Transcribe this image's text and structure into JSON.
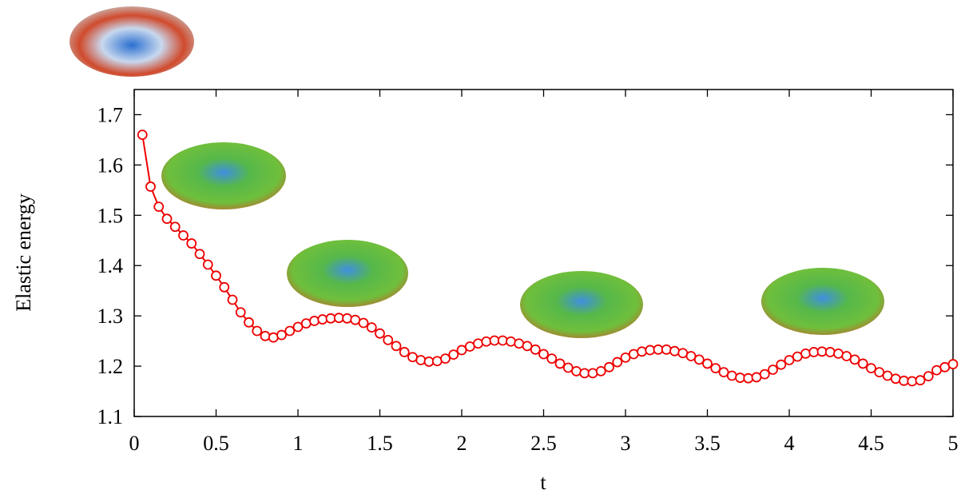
{
  "chart_data": {
    "type": "line",
    "xlabel": "t",
    "ylabel": "Elastic energy",
    "xlim": [
      0,
      5
    ],
    "ylim": [
      1.1,
      1.75
    ],
    "xticks": [
      0,
      0.5,
      1,
      1.5,
      2,
      2.5,
      3,
      3.5,
      4,
      4.5,
      5
    ],
    "yticks": [
      1.1,
      1.2,
      1.3,
      1.4,
      1.5,
      1.6,
      1.7
    ],
    "x": [
      0.05,
      0.1,
      0.15,
      0.2,
      0.25,
      0.3,
      0.35,
      0.4,
      0.45,
      0.5,
      0.55,
      0.6,
      0.65,
      0.7,
      0.75,
      0.8,
      0.85,
      0.9,
      0.95,
      1,
      1.05,
      1.1,
      1.15,
      1.2,
      1.25,
      1.3,
      1.35,
      1.4,
      1.45,
      1.5,
      1.55,
      1.6,
      1.65,
      1.7,
      1.75,
      1.8,
      1.85,
      1.9,
      1.95,
      2,
      2.05,
      2.1,
      2.15,
      2.2,
      2.25,
      2.3,
      2.35,
      2.4,
      2.45,
      2.5,
      2.55,
      2.6,
      2.65,
      2.7,
      2.75,
      2.8,
      2.85,
      2.9,
      2.95,
      3,
      3.05,
      3.1,
      3.15,
      3.2,
      3.25,
      3.3,
      3.35,
      3.4,
      3.45,
      3.5,
      3.55,
      3.6,
      3.65,
      3.7,
      3.75,
      3.8,
      3.85,
      3.9,
      3.95,
      4,
      4.05,
      4.1,
      4.15,
      4.2,
      4.25,
      4.3,
      4.35,
      4.4,
      4.45,
      4.5,
      4.55,
      4.6,
      4.65,
      4.7,
      4.75,
      4.8,
      4.85,
      4.9,
      4.95,
      5
    ],
    "series": [
      {
        "color": "#ee0000",
        "values": [
          1.66,
          1.557,
          1.517,
          1.493,
          1.477,
          1.46,
          1.444,
          1.423,
          1.402,
          1.38,
          1.357,
          1.332,
          1.307,
          1.287,
          1.27,
          1.26,
          1.257,
          1.262,
          1.27,
          1.278,
          1.285,
          1.29,
          1.293,
          1.295,
          1.296,
          1.295,
          1.292,
          1.286,
          1.277,
          1.265,
          1.252,
          1.24,
          1.228,
          1.218,
          1.212,
          1.209,
          1.21,
          1.215,
          1.223,
          1.232,
          1.239,
          1.245,
          1.249,
          1.251,
          1.251,
          1.249,
          1.245,
          1.24,
          1.233,
          1.224,
          1.215,
          1.205,
          1.197,
          1.19,
          1.186,
          1.186,
          1.19,
          1.198,
          1.208,
          1.217,
          1.224,
          1.229,
          1.232,
          1.233,
          1.233,
          1.23,
          1.226,
          1.22,
          1.213,
          1.205,
          1.196,
          1.188,
          1.181,
          1.177,
          1.176,
          1.178,
          1.184,
          1.193,
          1.203,
          1.212,
          1.219,
          1.225,
          1.228,
          1.229,
          1.228,
          1.225,
          1.22,
          1.213,
          1.205,
          1.196,
          1.188,
          1.181,
          1.175,
          1.171,
          1.17,
          1.172,
          1.18,
          1.192,
          1.198,
          1.204
        ]
      }
    ]
  }
}
